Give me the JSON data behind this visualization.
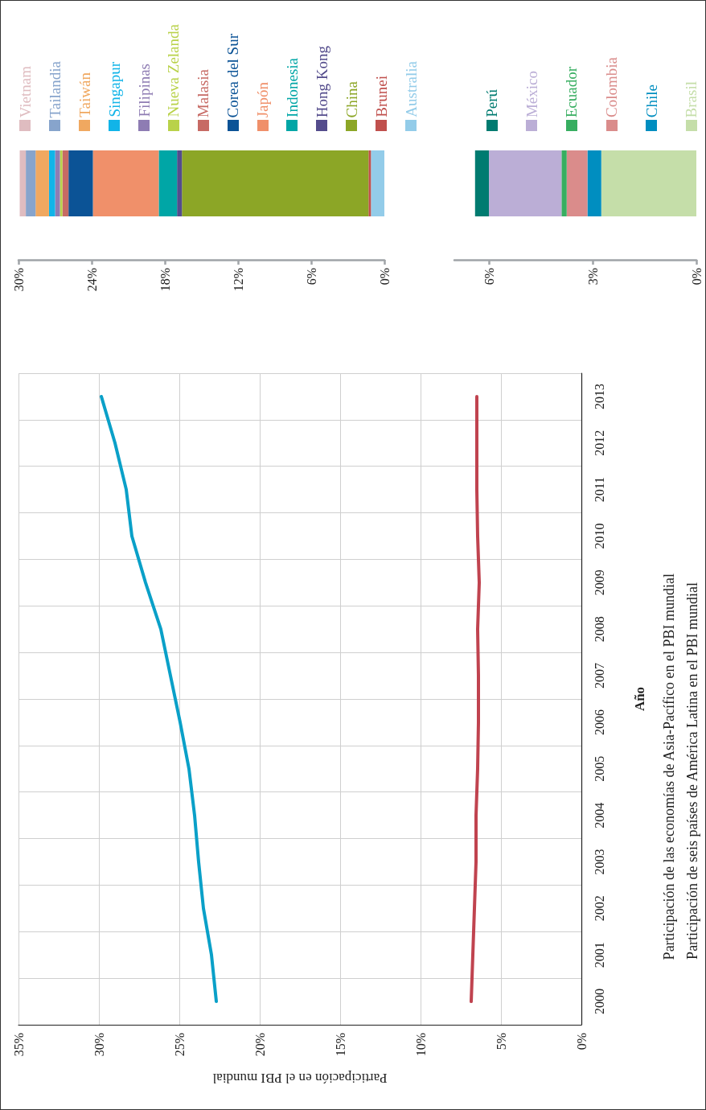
{
  "chart_data": [
    {
      "type": "line",
      "orientation": "horizontal",
      "xlabel": "Participación en el PBI mundial",
      "ylabel": "Año",
      "categories": [
        "2013",
        "2012",
        "2011",
        "2010",
        "2009",
        "2008",
        "2007",
        "2006",
        "2005",
        "2004",
        "2003",
        "2002",
        "2001",
        "2000"
      ],
      "series": [
        {
          "name": "Participación de las economías de Asia-Pacífico en el PBI mundial",
          "color": "#0aa0c8",
          "values": [
            29.85,
            29.0,
            28.3,
            27.95,
            27.1,
            26.15,
            25.55,
            24.95,
            24.4,
            24.05,
            23.8,
            23.5,
            23.0,
            22.7
          ]
        },
        {
          "name": "Participación de seis países de América Latina en el PBI mundial",
          "color": "#c0434f",
          "values": [
            6.5,
            6.5,
            6.5,
            6.45,
            6.35,
            6.45,
            6.4,
            6.4,
            6.45,
            6.55,
            6.55,
            6.65,
            6.75,
            6.85
          ]
        }
      ],
      "xlim": [
        35,
        0
      ],
      "xticks": [
        {
          "value": 35,
          "label": "35%"
        },
        {
          "value": 30,
          "label": "30%"
        },
        {
          "value": 25,
          "label": "25%"
        },
        {
          "value": 20,
          "label": "20%"
        },
        {
          "value": 15,
          "label": "15%"
        },
        {
          "value": 10,
          "label": "10%"
        },
        {
          "value": 5,
          "label": "5%"
        },
        {
          "value": 0,
          "label": "0%"
        }
      ],
      "grid": true,
      "legend": "right",
      "marker": "none"
    },
    {
      "type": "bar",
      "orientation": "horizontal",
      "stacked": true,
      "categories": [
        null
      ],
      "series": [
        {
          "name": "Australia",
          "color": "#93cce9",
          "values": [
            1.1
          ]
        },
        {
          "name": "Brunei",
          "color": "#c0504d",
          "values": [
            0.2
          ]
        },
        {
          "name": "China",
          "color": "#8ca626",
          "values": [
            15.3
          ]
        },
        {
          "name": "Hong Kong",
          "color": "#544c8c",
          "values": [
            0.4
          ]
        },
        {
          "name": "Indonesia",
          "color": "#00a6a6",
          "values": [
            1.5
          ]
        },
        {
          "name": "Japón",
          "color": "#f0906a",
          "values": [
            5.4
          ]
        },
        {
          "name": "Corea del Sur",
          "color": "#0b5396",
          "values": [
            2.0
          ]
        },
        {
          "name": "Malasia",
          "color": "#c76a64",
          "values": [
            0.5
          ]
        },
        {
          "name": "Nueva Zelanda",
          "color": "#b9d24a",
          "values": [
            0.2
          ]
        },
        {
          "name": "Filipinas",
          "color": "#8e7cb3",
          "values": [
            0.4
          ]
        },
        {
          "name": "Singapur",
          "color": "#11b4e8",
          "values": [
            0.5
          ]
        },
        {
          "name": "Taiwán",
          "color": "#f0a860",
          "values": [
            1.1
          ]
        },
        {
          "name": "Tailandia",
          "color": "#87a4cc",
          "values": [
            0.8
          ]
        },
        {
          "name": "Vietnam",
          "color": "#dfbcc0",
          "values": [
            0.5
          ]
        }
      ],
      "xlim": [
        30,
        0
      ],
      "xticks": [
        {
          "value": 30,
          "label": "30%"
        },
        {
          "value": 24,
          "label": "24%"
        },
        {
          "value": 18,
          "label": "18%"
        },
        {
          "value": 12,
          "label": "12%"
        },
        {
          "value": 6,
          "label": "6%"
        },
        {
          "value": 0,
          "label": "0%"
        }
      ],
      "grid": false,
      "legend": "top"
    },
    {
      "type": "bar",
      "orientation": "horizontal",
      "stacked": true,
      "categories": [
        null
      ],
      "series": [
        {
          "name": "Brasil",
          "color": "#c5dea9",
          "values": [
            2.75
          ]
        },
        {
          "name": "Chile",
          "color": "#008ec0",
          "values": [
            0.4
          ]
        },
        {
          "name": "Colombia",
          "color": "#da8c8b",
          "values": [
            0.6
          ]
        },
        {
          "name": "Ecuador",
          "color": "#37ae60",
          "values": [
            0.15
          ]
        },
        {
          "name": "México",
          "color": "#bbaed6",
          "values": [
            2.1
          ]
        },
        {
          "name": "Perú",
          "color": "#007b70",
          "values": [
            0.4
          ]
        }
      ],
      "xlim": [
        7,
        0
      ],
      "xticks": [
        {
          "value": 6,
          "label": "6%"
        },
        {
          "value": 3,
          "label": "3%"
        },
        {
          "value": 0,
          "label": "0%"
        }
      ],
      "grid": false,
      "legend": "top"
    }
  ]
}
